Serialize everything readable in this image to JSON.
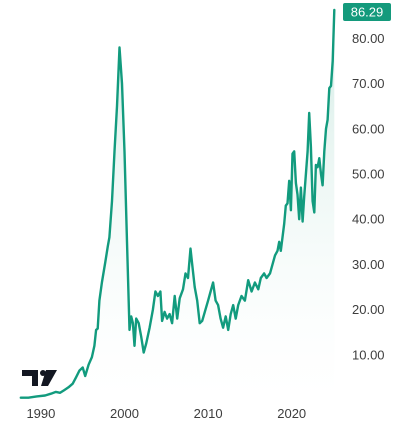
{
  "chart_data": {
    "type": "area",
    "title": "",
    "xlabel": "",
    "ylabel": "",
    "xlim": [
      1987.5,
      2025.3
    ],
    "ylim": [
      0,
      88.5
    ],
    "x_ticks": [
      {
        "value": 1990,
        "label": "1990"
      },
      {
        "value": 2000,
        "label": "2000"
      },
      {
        "value": 2010,
        "label": "2010"
      },
      {
        "value": 2020,
        "label": "2020"
      }
    ],
    "y_ticks": [
      {
        "value": 10,
        "label": "10.00"
      },
      {
        "value": 20,
        "label": "20.00"
      },
      {
        "value": 30,
        "label": "30.00"
      },
      {
        "value": 40,
        "label": "40.00"
      },
      {
        "value": 50,
        "label": "50.00"
      },
      {
        "value": 60,
        "label": "60.00"
      },
      {
        "value": 70,
        "label": "70.00"
      },
      {
        "value": 80,
        "label": "80.00"
      }
    ],
    "last_value_label": "86.29",
    "grid": false,
    "colors": {
      "line": "#129b7e",
      "fill_top": "#cfeae3",
      "fill_bottom": "#ffffff",
      "badge": "#149a7c"
    },
    "series": [
      {
        "values": [
          [
            1987.6,
            0.5
          ],
          [
            1988.5,
            0.5
          ],
          [
            1989.5,
            0.8
          ],
          [
            1990.5,
            1.0
          ],
          [
            1991.2,
            1.4
          ],
          [
            1991.8,
            1.8
          ],
          [
            1992.3,
            1.6
          ],
          [
            1992.8,
            2.2
          ],
          [
            1993.3,
            2.8
          ],
          [
            1993.8,
            3.6
          ],
          [
            1994.2,
            5.0
          ],
          [
            1994.6,
            6.5
          ],
          [
            1995.0,
            7.2
          ],
          [
            1995.3,
            5.3
          ],
          [
            1995.7,
            7.8
          ],
          [
            1996.1,
            9.5
          ],
          [
            1996.4,
            12.0
          ],
          [
            1996.6,
            15.5
          ],
          [
            1996.8,
            15.8
          ],
          [
            1997.0,
            22.0
          ],
          [
            1997.3,
            26.0
          ],
          [
            1997.7,
            30.5
          ],
          [
            1998.0,
            34.0
          ],
          [
            1998.2,
            36.0
          ],
          [
            1998.5,
            44.0
          ],
          [
            1998.8,
            55.0
          ],
          [
            1999.1,
            65.0
          ],
          [
            1999.4,
            78.0
          ],
          [
            1999.7,
            70.0
          ],
          [
            2000.0,
            55.0
          ],
          [
            2000.3,
            35.0
          ],
          [
            2000.6,
            15.5
          ],
          [
            2000.8,
            18.5
          ],
          [
            2001.0,
            17.0
          ],
          [
            2001.2,
            12.0
          ],
          [
            2001.4,
            18.0
          ],
          [
            2001.7,
            17.0
          ],
          [
            2002.0,
            14.0
          ],
          [
            2002.3,
            10.5
          ],
          [
            2002.6,
            12.5
          ],
          [
            2003.0,
            16.0
          ],
          [
            2003.4,
            20.0
          ],
          [
            2003.7,
            24.0
          ],
          [
            2004.0,
            23.0
          ],
          [
            2004.3,
            24.0
          ],
          [
            2004.5,
            17.5
          ],
          [
            2004.8,
            19.5
          ],
          [
            2005.1,
            18.0
          ],
          [
            2005.4,
            19.0
          ],
          [
            2005.7,
            17.0
          ],
          [
            2006.0,
            23.0
          ],
          [
            2006.3,
            18.0
          ],
          [
            2006.6,
            22.5
          ],
          [
            2007.0,
            24.5
          ],
          [
            2007.3,
            28.0
          ],
          [
            2007.6,
            27.0
          ],
          [
            2007.9,
            33.5
          ],
          [
            2008.1,
            30.0
          ],
          [
            2008.4,
            25.0
          ],
          [
            2008.7,
            22.0
          ],
          [
            2009.0,
            17.0
          ],
          [
            2009.3,
            17.5
          ],
          [
            2009.6,
            19.5
          ],
          [
            2010.0,
            22.0
          ],
          [
            2010.3,
            24.0
          ],
          [
            2010.6,
            26.0
          ],
          [
            2010.9,
            22.0
          ],
          [
            2011.2,
            21.0
          ],
          [
            2011.5,
            18.0
          ],
          [
            2011.8,
            16.0
          ],
          [
            2012.1,
            18.5
          ],
          [
            2012.4,
            15.5
          ],
          [
            2012.7,
            19.0
          ],
          [
            2013.0,
            21.0
          ],
          [
            2013.3,
            18.0
          ],
          [
            2013.6,
            21.0
          ],
          [
            2014.0,
            23.0
          ],
          [
            2014.4,
            22.0
          ],
          [
            2014.8,
            26.5
          ],
          [
            2015.2,
            24.0
          ],
          [
            2015.6,
            26.0
          ],
          [
            2016.0,
            24.5
          ],
          [
            2016.3,
            27.0
          ],
          [
            2016.7,
            28.0
          ],
          [
            2017.0,
            27.0
          ],
          [
            2017.4,
            28.0
          ],
          [
            2017.7,
            30.0
          ],
          [
            2018.0,
            32.0
          ],
          [
            2018.3,
            33.0
          ],
          [
            2018.5,
            35.0
          ],
          [
            2018.7,
            33.0
          ],
          [
            2018.9,
            36.0
          ],
          [
            2019.1,
            39.0
          ],
          [
            2019.3,
            43.0
          ],
          [
            2019.5,
            43.5
          ],
          [
            2019.7,
            48.5
          ],
          [
            2019.9,
            42.0
          ],
          [
            2020.1,
            54.5
          ],
          [
            2020.3,
            55.0
          ],
          [
            2020.5,
            48.0
          ],
          [
            2020.7,
            45.5
          ],
          [
            2020.9,
            40.0
          ],
          [
            2021.1,
            47.0
          ],
          [
            2021.3,
            39.5
          ],
          [
            2021.5,
            45.0
          ],
          [
            2021.7,
            50.0
          ],
          [
            2021.9,
            55.0
          ],
          [
            2022.1,
            63.5
          ],
          [
            2022.3,
            56.0
          ],
          [
            2022.5,
            44.0
          ],
          [
            2022.7,
            41.5
          ],
          [
            2022.9,
            52.0
          ],
          [
            2023.1,
            51.5
          ],
          [
            2023.3,
            53.5
          ],
          [
            2023.5,
            50.0
          ],
          [
            2023.7,
            47.5
          ],
          [
            2023.9,
            55.0
          ],
          [
            2024.1,
            60.0
          ],
          [
            2024.3,
            62.0
          ],
          [
            2024.5,
            69.0
          ],
          [
            2024.7,
            69.5
          ],
          [
            2024.9,
            75.0
          ],
          [
            2025.1,
            86.29
          ]
        ]
      }
    ]
  },
  "watermark": {
    "logo_icon": "tradingview-logo-icon",
    "logo_text": "TV"
  }
}
